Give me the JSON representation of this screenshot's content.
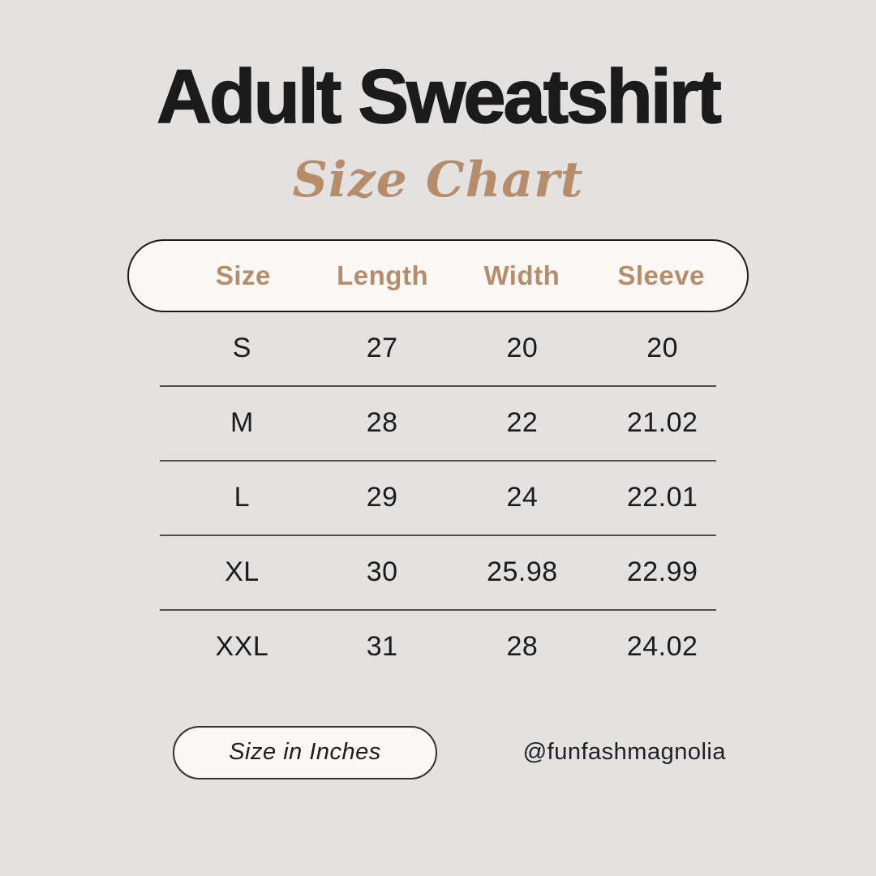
{
  "page": {
    "title": "Adult Sweatshirt",
    "subtitle": "Size Chart"
  },
  "table": {
    "headers": [
      "Size",
      "Length",
      "Width",
      "Sleeve"
    ],
    "rows": [
      {
        "size": "S",
        "length": "27",
        "width": "20",
        "sleeve": "20"
      },
      {
        "size": "M",
        "length": "28",
        "width": "22",
        "sleeve": "21.02"
      },
      {
        "size": "L",
        "length": "29",
        "width": "24",
        "sleeve": "22.01"
      },
      {
        "size": "XL",
        "length": "30",
        "width": "25.98",
        "sleeve": "22.99"
      },
      {
        "size": "XXL",
        "length": "31",
        "width": "28",
        "sleeve": "24.02"
      }
    ]
  },
  "footer": {
    "unit_label": "Size in Inches",
    "handle": "@funfashmagnolia"
  },
  "colors": {
    "background": "#e3e2e0",
    "text": "#1b1b1b",
    "accent_tan": "#b68c6b",
    "pill_background": "#faf9f6",
    "pill_border": "#1c1c1c",
    "unit_pill_border": "#3b2f27",
    "divider": "#4f4f4f"
  },
  "chart_data": {
    "type": "table",
    "title": "Adult Sweatshirt Size Chart",
    "columns": [
      "Size",
      "Length",
      "Width",
      "Sleeve"
    ],
    "rows": [
      [
        "S",
        27,
        20,
        20
      ],
      [
        "M",
        28,
        22,
        21.02
      ],
      [
        "L",
        29,
        24,
        22.01
      ],
      [
        "XL",
        30,
        25.98,
        22.99
      ],
      [
        "XXL",
        31,
        28,
        24.02
      ]
    ],
    "units": "Inches"
  }
}
